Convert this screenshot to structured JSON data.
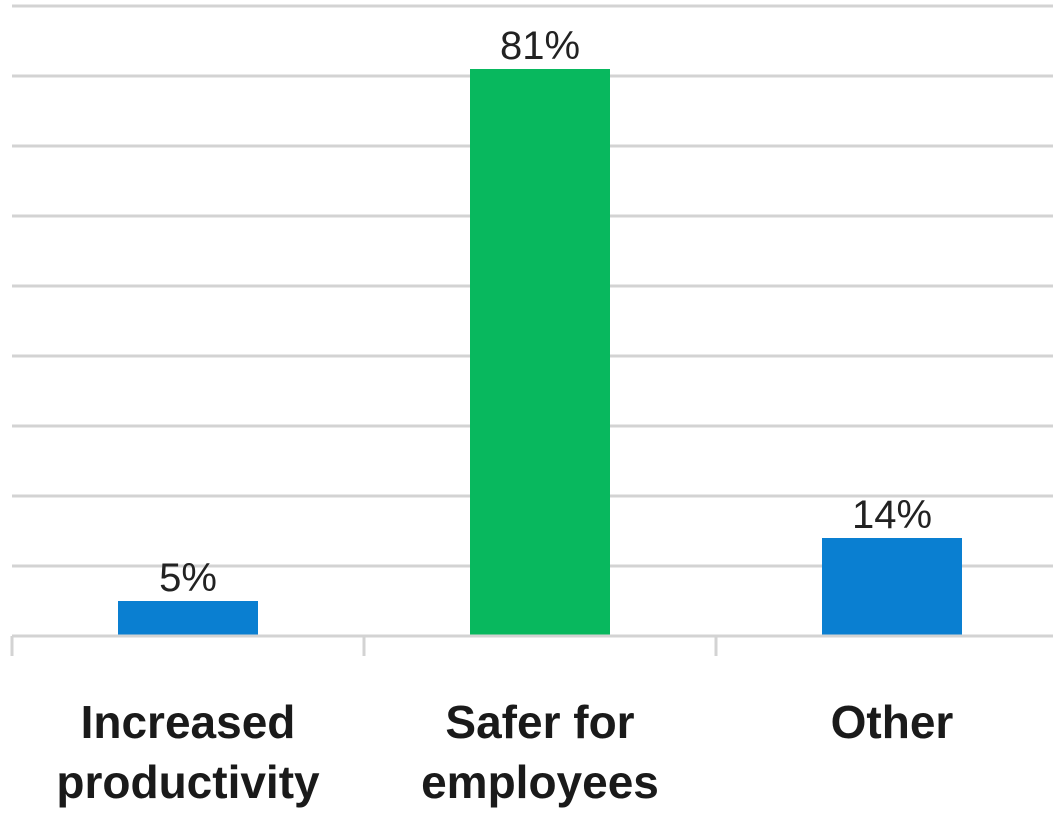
{
  "chart_data": {
    "type": "bar",
    "categories": [
      [
        "Increased",
        "productivity"
      ],
      [
        "Safer for",
        "employees"
      ],
      [
        "Other"
      ]
    ],
    "values": [
      5,
      81,
      14
    ],
    "data_labels": [
      "5%",
      "81%",
      "14%"
    ],
    "colors": [
      "#0a7fd1",
      "#08b85e",
      "#0a7fd1"
    ],
    "ylim": [
      0,
      90
    ],
    "grid": true,
    "title": "",
    "xlabel": "",
    "ylabel": ""
  }
}
